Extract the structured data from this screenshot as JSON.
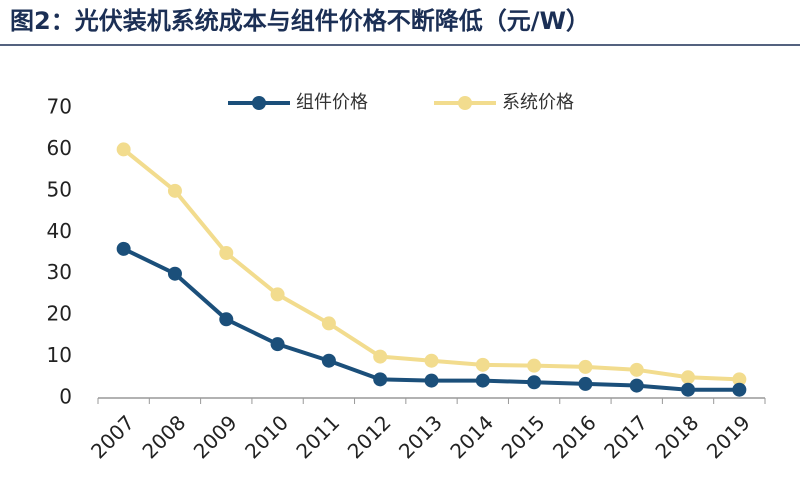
{
  "chart_data": {
    "type": "line",
    "title": "图2：光伏装机系统成本与组件价格不断降低（元/W）",
    "categories": [
      "2007",
      "2008",
      "2009",
      "2010",
      "2011",
      "2012",
      "2013",
      "2014",
      "2015",
      "2016",
      "2017",
      "2018",
      "2019"
    ],
    "series": [
      {
        "name": "组件价格",
        "color": "#1b4f7a",
        "values": [
          36,
          30,
          19,
          13,
          9,
          4.5,
          4.2,
          4.2,
          3.8,
          3.4,
          3,
          2,
          2
        ]
      },
      {
        "name": "系统价格",
        "color": "#f2dc8e",
        "values": [
          60,
          50,
          35,
          25,
          18,
          10,
          9,
          8,
          7.8,
          7.5,
          6.8,
          5,
          4.5
        ]
      }
    ],
    "ylim": [
      0,
      70
    ],
    "yticks": [
      0,
      10,
      20,
      30,
      40,
      50,
      60,
      70
    ],
    "grid": false
  }
}
